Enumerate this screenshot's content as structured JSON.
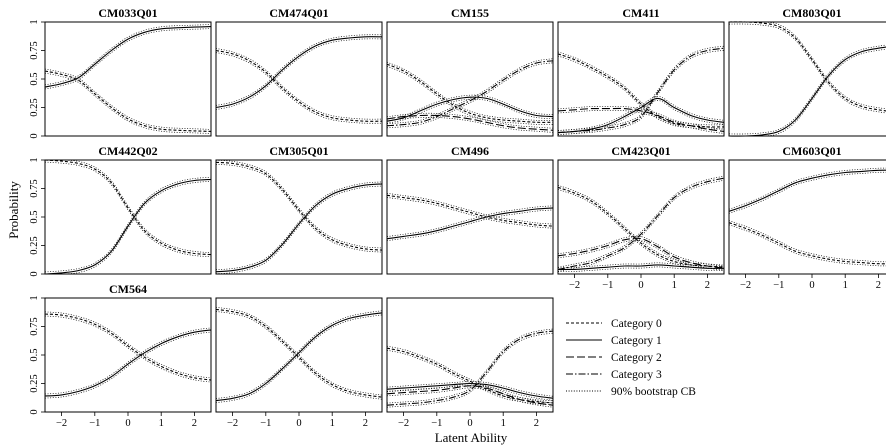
{
  "figure": {
    "ylabel": "Probability",
    "xlabel": "Latent Ability",
    "legend": [
      {
        "label": "Category 0",
        "dash": "3,2"
      },
      {
        "label": "Category 1",
        "dash": ""
      },
      {
        "label": "Category 2",
        "dash": "8,3"
      },
      {
        "label": "Category 3",
        "dash": "7,2,1.5,2"
      },
      {
        "label": "90% bootstrap CB",
        "dash": "1,1.6"
      }
    ]
  },
  "chart_data": [
    {
      "type": "line",
      "title": "CM033Q01",
      "xlim": [
        -2.5,
        2.5
      ],
      "ylim": [
        0,
        1
      ],
      "x": [
        -2.5,
        -2,
        -1.5,
        -1,
        -0.5,
        0,
        0.5,
        1,
        1.5,
        2,
        2.5
      ],
      "series": [
        {
          "category": 0,
          "values": [
            0.57,
            0.54,
            0.49,
            0.37,
            0.25,
            0.15,
            0.09,
            0.06,
            0.05,
            0.045,
            0.04
          ]
        },
        {
          "category": 1,
          "values": [
            0.43,
            0.46,
            0.51,
            0.63,
            0.75,
            0.85,
            0.91,
            0.94,
            0.95,
            0.955,
            0.96
          ]
        }
      ]
    },
    {
      "type": "line",
      "title": "CM474Q01",
      "xlim": [
        -2.5,
        2.5
      ],
      "ylim": [
        0,
        1
      ],
      "x": [
        -2.5,
        -2,
        -1.5,
        -1,
        -0.5,
        0,
        0.5,
        1,
        1.5,
        2,
        2.5
      ],
      "series": [
        {
          "category": 0,
          "values": [
            0.75,
            0.72,
            0.66,
            0.56,
            0.42,
            0.3,
            0.21,
            0.16,
            0.14,
            0.13,
            0.13
          ]
        },
        {
          "category": 1,
          "values": [
            0.25,
            0.28,
            0.34,
            0.44,
            0.58,
            0.7,
            0.79,
            0.84,
            0.86,
            0.87,
            0.87
          ]
        }
      ]
    },
    {
      "type": "line",
      "title": "CM155",
      "xlim": [
        -2.5,
        2.5
      ],
      "ylim": [
        0,
        1
      ],
      "x": [
        -2.5,
        -2,
        -1.5,
        -1,
        -0.5,
        0,
        0.5,
        1,
        1.5,
        2,
        2.5
      ],
      "series": [
        {
          "category": 0,
          "values": [
            0.63,
            0.57,
            0.48,
            0.37,
            0.27,
            0.2,
            0.16,
            0.14,
            0.13,
            0.12,
            0.12
          ]
        },
        {
          "category": 1,
          "values": [
            0.13,
            0.16,
            0.22,
            0.28,
            0.32,
            0.34,
            0.33,
            0.28,
            0.22,
            0.18,
            0.17
          ]
        },
        {
          "category": 2,
          "values": [
            0.15,
            0.17,
            0.18,
            0.18,
            0.17,
            0.15,
            0.12,
            0.09,
            0.07,
            0.06,
            0.05
          ]
        },
        {
          "category": 3,
          "values": [
            0.09,
            0.1,
            0.12,
            0.17,
            0.24,
            0.31,
            0.39,
            0.49,
            0.58,
            0.64,
            0.66
          ]
        }
      ]
    },
    {
      "type": "line",
      "title": "CM411",
      "xlim": [
        -2.5,
        2.5
      ],
      "ylim": [
        0,
        1
      ],
      "x": [
        -2.5,
        -2,
        -1.5,
        -1,
        -0.5,
        0,
        0.5,
        1,
        1.5,
        2,
        2.5
      ],
      "series": [
        {
          "category": 0,
          "values": [
            0.72,
            0.67,
            0.6,
            0.52,
            0.42,
            0.28,
            0.17,
            0.11,
            0.09,
            0.08,
            0.08
          ]
        },
        {
          "category": 1,
          "values": [
            0.03,
            0.04,
            0.06,
            0.1,
            0.17,
            0.25,
            0.33,
            0.25,
            0.18,
            0.14,
            0.12
          ]
        },
        {
          "category": 2,
          "values": [
            0.22,
            0.23,
            0.24,
            0.24,
            0.24,
            0.22,
            0.18,
            0.12,
            0.09,
            0.06,
            0.04
          ]
        },
        {
          "category": 3,
          "values": [
            0.03,
            0.04,
            0.05,
            0.07,
            0.1,
            0.17,
            0.38,
            0.58,
            0.7,
            0.75,
            0.77
          ]
        }
      ]
    },
    {
      "type": "line",
      "title": "CM803Q01",
      "xlim": [
        -2.5,
        2.5
      ],
      "ylim": [
        0,
        1
      ],
      "x": [
        -2.5,
        -2,
        -1.5,
        -1,
        -0.5,
        0,
        0.5,
        1,
        1.5,
        2,
        2.5
      ],
      "series": [
        {
          "category": 0,
          "values": [
            1.0,
            1.0,
            0.99,
            0.96,
            0.86,
            0.67,
            0.47,
            0.33,
            0.26,
            0.23,
            0.21
          ]
        },
        {
          "category": 1,
          "values": [
            0.0,
            0.0,
            0.01,
            0.04,
            0.14,
            0.33,
            0.53,
            0.67,
            0.74,
            0.77,
            0.79
          ]
        }
      ]
    },
    {
      "type": "line",
      "title": "CM442Q02",
      "xlim": [
        -2.5,
        2.5
      ],
      "ylim": [
        0,
        1
      ],
      "x": [
        -2.5,
        -2,
        -1.5,
        -1,
        -0.5,
        0,
        0.5,
        1,
        1.5,
        2,
        2.5
      ],
      "series": [
        {
          "category": 0,
          "values": [
            1.0,
            0.99,
            0.97,
            0.92,
            0.8,
            0.58,
            0.38,
            0.27,
            0.21,
            0.18,
            0.17
          ]
        },
        {
          "category": 1,
          "values": [
            0.0,
            0.01,
            0.03,
            0.08,
            0.2,
            0.42,
            0.62,
            0.73,
            0.79,
            0.82,
            0.83
          ]
        }
      ]
    },
    {
      "type": "line",
      "title": "CM305Q01",
      "xlim": [
        -2.5,
        2.5
      ],
      "ylim": [
        0,
        1
      ],
      "x": [
        -2.5,
        -2,
        -1.5,
        -1,
        -0.5,
        0,
        0.5,
        1,
        1.5,
        2,
        2.5
      ],
      "series": [
        {
          "category": 0,
          "values": [
            0.98,
            0.97,
            0.94,
            0.88,
            0.74,
            0.56,
            0.4,
            0.3,
            0.25,
            0.22,
            0.21
          ]
        },
        {
          "category": 1,
          "values": [
            0.02,
            0.03,
            0.06,
            0.12,
            0.26,
            0.44,
            0.6,
            0.7,
            0.75,
            0.78,
            0.79
          ]
        }
      ]
    },
    {
      "type": "line",
      "title": "CM496",
      "xlim": [
        -2.5,
        2.5
      ],
      "ylim": [
        0,
        1
      ],
      "x": [
        -2.5,
        -2,
        -1.5,
        -1,
        -0.5,
        0,
        0.5,
        1,
        1.5,
        2,
        2.5
      ],
      "series": [
        {
          "category": 0,
          "values": [
            0.69,
            0.67,
            0.65,
            0.62,
            0.58,
            0.54,
            0.5,
            0.47,
            0.45,
            0.43,
            0.42
          ]
        },
        {
          "category": 1,
          "values": [
            0.31,
            0.33,
            0.35,
            0.38,
            0.42,
            0.46,
            0.5,
            0.53,
            0.55,
            0.57,
            0.58
          ]
        }
      ]
    },
    {
      "type": "line",
      "title": "CM423Q01",
      "xlim": [
        -2.5,
        2.5
      ],
      "ylim": [
        0,
        1
      ],
      "x": [
        -2.5,
        -2,
        -1.5,
        -1,
        -0.5,
        0,
        0.5,
        1,
        1.5,
        2,
        2.5
      ],
      "series": [
        {
          "category": 0,
          "values": [
            0.76,
            0.71,
            0.64,
            0.53,
            0.4,
            0.27,
            0.17,
            0.11,
            0.08,
            0.07,
            0.06
          ]
        },
        {
          "category": 1,
          "values": [
            0.04,
            0.04,
            0.05,
            0.06,
            0.07,
            0.07,
            0.08,
            0.07,
            0.06,
            0.05,
            0.05
          ]
        },
        {
          "category": 2,
          "values": [
            0.16,
            0.18,
            0.21,
            0.25,
            0.3,
            0.31,
            0.24,
            0.15,
            0.1,
            0.07,
            0.05
          ]
        },
        {
          "category": 3,
          "values": [
            0.04,
            0.07,
            0.1,
            0.16,
            0.23,
            0.35,
            0.51,
            0.67,
            0.76,
            0.81,
            0.84
          ]
        }
      ]
    },
    {
      "type": "line",
      "title": "CM603Q01",
      "xlim": [
        -2.5,
        2.5
      ],
      "ylim": [
        0,
        1
      ],
      "x": [
        -2.5,
        -2,
        -1.5,
        -1,
        -0.5,
        0,
        0.5,
        1,
        1.5,
        2,
        2.5
      ],
      "series": [
        {
          "category": 0,
          "values": [
            0.45,
            0.4,
            0.34,
            0.27,
            0.2,
            0.16,
            0.13,
            0.11,
            0.1,
            0.09,
            0.09
          ]
        },
        {
          "category": 1,
          "values": [
            0.55,
            0.6,
            0.66,
            0.73,
            0.8,
            0.84,
            0.87,
            0.89,
            0.9,
            0.91,
            0.91
          ]
        }
      ]
    },
    {
      "type": "line",
      "title": "CM564",
      "xlim": [
        -2.5,
        2.5
      ],
      "ylim": [
        0,
        1
      ],
      "x": [
        -2.5,
        -2,
        -1.5,
        -1,
        -0.5,
        0,
        0.5,
        1,
        1.5,
        2,
        2.5
      ],
      "series": [
        {
          "category": 0,
          "values": [
            0.86,
            0.85,
            0.82,
            0.77,
            0.69,
            0.58,
            0.48,
            0.4,
            0.34,
            0.3,
            0.28
          ]
        },
        {
          "category": 1,
          "values": [
            0.14,
            0.15,
            0.18,
            0.23,
            0.31,
            0.42,
            0.52,
            0.6,
            0.66,
            0.7,
            0.72
          ]
        }
      ]
    },
    {
      "type": "line",
      "title": "",
      "xlim": [
        -2.5,
        2.5
      ],
      "ylim": [
        0,
        1
      ],
      "x": [
        -2.5,
        -2,
        -1.5,
        -1,
        -0.5,
        0,
        0.5,
        1,
        1.5,
        2,
        2.5
      ],
      "series": [
        {
          "category": 0,
          "values": [
            0.9,
            0.88,
            0.84,
            0.75,
            0.62,
            0.48,
            0.34,
            0.24,
            0.18,
            0.15,
            0.13
          ]
        },
        {
          "category": 1,
          "values": [
            0.1,
            0.12,
            0.16,
            0.25,
            0.38,
            0.52,
            0.66,
            0.76,
            0.82,
            0.85,
            0.87
          ]
        }
      ]
    },
    {
      "type": "line",
      "title": "",
      "xlim": [
        -2.5,
        2.5
      ],
      "ylim": [
        0,
        1
      ],
      "x": [
        -2.5,
        -2,
        -1.5,
        -1,
        -0.5,
        0,
        0.5,
        1,
        1.5,
        2,
        2.5
      ],
      "series": [
        {
          "category": 0,
          "values": [
            0.56,
            0.53,
            0.48,
            0.42,
            0.34,
            0.27,
            0.2,
            0.14,
            0.11,
            0.09,
            0.08
          ]
        },
        {
          "category": 1,
          "values": [
            0.2,
            0.21,
            0.22,
            0.23,
            0.24,
            0.25,
            0.24,
            0.21,
            0.17,
            0.14,
            0.12
          ]
        },
        {
          "category": 2,
          "values": [
            0.16,
            0.17,
            0.18,
            0.19,
            0.21,
            0.23,
            0.21,
            0.16,
            0.11,
            0.08,
            0.06
          ]
        },
        {
          "category": 3,
          "values": [
            0.06,
            0.07,
            0.08,
            0.1,
            0.13,
            0.19,
            0.35,
            0.53,
            0.64,
            0.69,
            0.71
          ]
        }
      ]
    }
  ],
  "axes": {
    "xticks": [
      "-2",
      "-1",
      "0",
      "1",
      "2"
    ],
    "yticks": [
      "0",
      "0.25",
      "0.5",
      "0.75",
      "1"
    ]
  }
}
